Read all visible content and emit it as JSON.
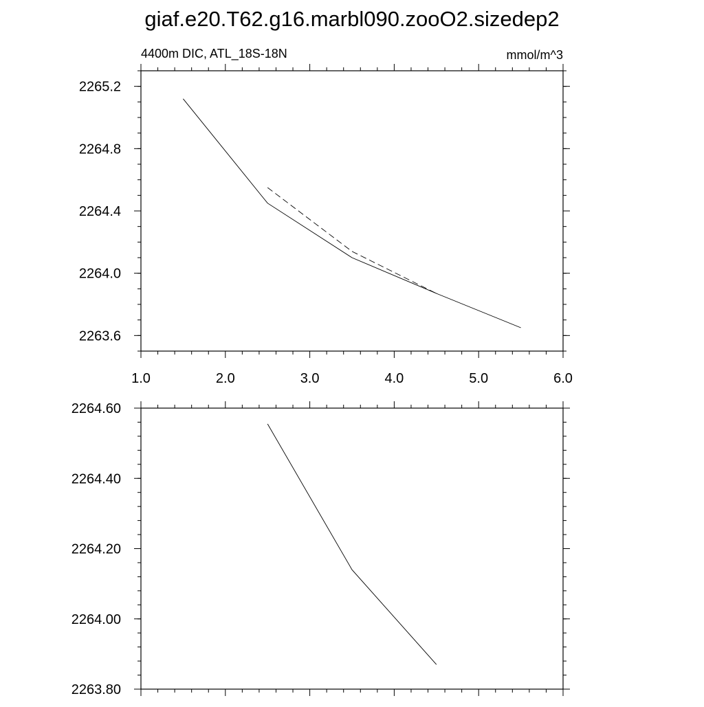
{
  "page": {
    "title": "giaf.e20.T62.g16.marbl090.zooO2.sizedep2"
  },
  "chart_data": [
    {
      "type": "line",
      "subtitle_left": "4400m DIC, ATL_18S-18N",
      "subtitle_right": "mmol/m^3",
      "xlabel": "",
      "ylabel": "",
      "xlim": [
        1.0,
        6.0
      ],
      "ylim": [
        2263.5,
        2265.3
      ],
      "x_ticks": [
        1.0,
        2.0,
        3.0,
        4.0,
        5.0,
        6.0
      ],
      "x_tick_labels": [
        "1.0",
        "2.0",
        "3.0",
        "4.0",
        "5.0",
        "6.0"
      ],
      "y_ticks": [
        2263.6,
        2264.0,
        2264.4,
        2264.8,
        2265.2
      ],
      "y_tick_labels": [
        "2263.6",
        "2264.0",
        "2264.4",
        "2264.8",
        "2265.2"
      ],
      "grid": false,
      "series": [
        {
          "style": "solid",
          "color": "#000000",
          "x": [
            1.5,
            2.5,
            3.5,
            4.5,
            5.5
          ],
          "y": [
            2265.12,
            2264.45,
            2264.1,
            2263.87,
            2263.65
          ]
        },
        {
          "style": "dashed",
          "color": "#000000",
          "x": [
            2.5,
            3.5,
            4.5
          ],
          "y": [
            2264.55,
            2264.14,
            2263.87
          ]
        }
      ]
    },
    {
      "type": "line",
      "xlabel": "",
      "ylabel": "",
      "xlim": [
        1.0,
        6.0
      ],
      "ylim": [
        2263.8,
        2264.6
      ],
      "x_ticks": [
        1.0,
        2.0,
        3.0,
        4.0,
        5.0,
        6.0
      ],
      "x_tick_labels": [],
      "y_ticks": [
        2263.8,
        2264.0,
        2264.2,
        2264.4,
        2264.6
      ],
      "y_tick_labels": [
        "2263.80",
        "2264.00",
        "2264.20",
        "2264.40",
        "2264.60"
      ],
      "grid": false,
      "series": [
        {
          "style": "solid",
          "color": "#000000",
          "x": [
            2.5,
            3.5,
            4.5
          ],
          "y": [
            2264.555,
            2264.14,
            2263.87
          ]
        }
      ]
    }
  ]
}
